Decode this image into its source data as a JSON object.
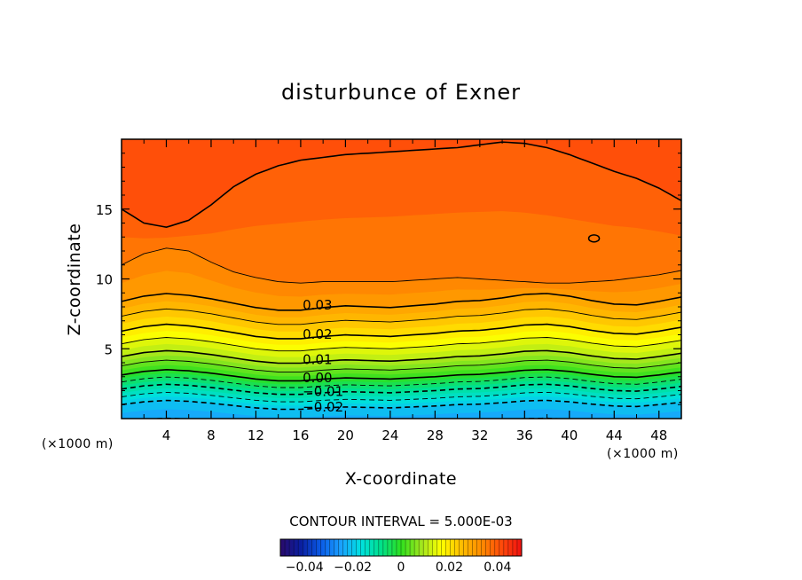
{
  "chart_data": {
    "type": "heatmap",
    "title": "disturbunce of Exner",
    "xlabel": "X-coordinate",
    "ylabel": "Z-coordinate",
    "x_unit": "(×1000 m)",
    "y_unit": "(×1000 m)",
    "xlim": [
      0,
      50
    ],
    "ylim": [
      0,
      20
    ],
    "x_ticks": [
      4,
      8,
      12,
      16,
      20,
      24,
      28,
      32,
      36,
      40,
      44,
      48
    ],
    "x_tick_labels": [
      "4",
      "8",
      "12",
      "16",
      "20",
      "24",
      "28",
      "32",
      "36",
      "40",
      "44",
      "48"
    ],
    "y_ticks": [
      5,
      10,
      15
    ],
    "y_tick_labels": [
      "5",
      "10",
      "15"
    ],
    "contour_interval_text": "CONTOUR INTERVAL = 5.000E-03",
    "contour_interval": 0.005,
    "contour_labels": [
      {
        "text": "0.03",
        "value": 0.03,
        "x": 17.5,
        "z": 8.2
      },
      {
        "text": "0.02",
        "value": 0.02,
        "x": 17.5,
        "z": 6.1
      },
      {
        "text": "0.01",
        "value": 0.01,
        "x": 17.5,
        "z": 4.3
      },
      {
        "text": "0.00",
        "value": 0.0,
        "x": 17.5,
        "z": 3.0
      },
      {
        "text": "-0.01",
        "value": -0.01,
        "x": 18.0,
        "z": 2.0
      },
      {
        "text": "-0.02",
        "value": -0.02,
        "x": 18.0,
        "z": 0.9
      }
    ],
    "profile_x": [
      0,
      2,
      4,
      6,
      8,
      10,
      12,
      14,
      16,
      18,
      20,
      22,
      24,
      26,
      28,
      30,
      32,
      34,
      36,
      38,
      40,
      42,
      44,
      46,
      48,
      50
    ],
    "profile_offset": [
      0.15,
      0.45,
      0.6,
      0.5,
      0.3,
      0.05,
      -0.2,
      -0.35,
      -0.35,
      -0.2,
      -0.1,
      -0.15,
      -0.2,
      -0.1,
      0.0,
      0.15,
      0.2,
      0.35,
      0.55,
      0.6,
      0.45,
      0.2,
      0.0,
      -0.05,
      0.15,
      0.4
    ],
    "upper_contour_z": [
      11.0,
      11.8,
      12.2,
      12.0,
      11.2,
      10.5,
      10.1,
      9.8,
      9.7,
      9.8,
      9.8,
      9.8,
      9.8,
      9.9,
      10.0,
      10.1,
      10.0,
      9.9,
      9.8,
      9.7,
      9.7,
      9.8,
      9.9,
      10.1,
      10.3,
      10.6
    ],
    "top_contour_z": [
      15.0,
      14.0,
      13.7,
      14.2,
      15.3,
      16.6,
      17.5,
      18.1,
      18.5,
      18.7,
      18.9,
      19.0,
      19.1,
      19.2,
      19.3,
      19.4,
      19.6,
      19.8,
      19.7,
      19.4,
      18.9,
      18.3,
      17.7,
      17.2,
      16.5,
      15.6
    ],
    "peak_marker": {
      "x": 42.2,
      "z": 12.9
    },
    "colorbar": {
      "range": [
        -0.05,
        0.05
      ],
      "ticks": [
        -0.04,
        -0.02,
        0,
        0.02,
        0.04
      ],
      "tick_labels": [
        "-0.04",
        "-0.02",
        "0",
        "0.02",
        "0.04"
      ],
      "colors": [
        "#2a0a6a",
        "#0a1ea0",
        "#0a5ae6",
        "#1aa0ff",
        "#00e0e0",
        "#00e08c",
        "#2ee01e",
        "#a0e61e",
        "#ffff00",
        "#ffbe00",
        "#ff8c00",
        "#ff4a0a",
        "#f01010"
      ]
    }
  }
}
